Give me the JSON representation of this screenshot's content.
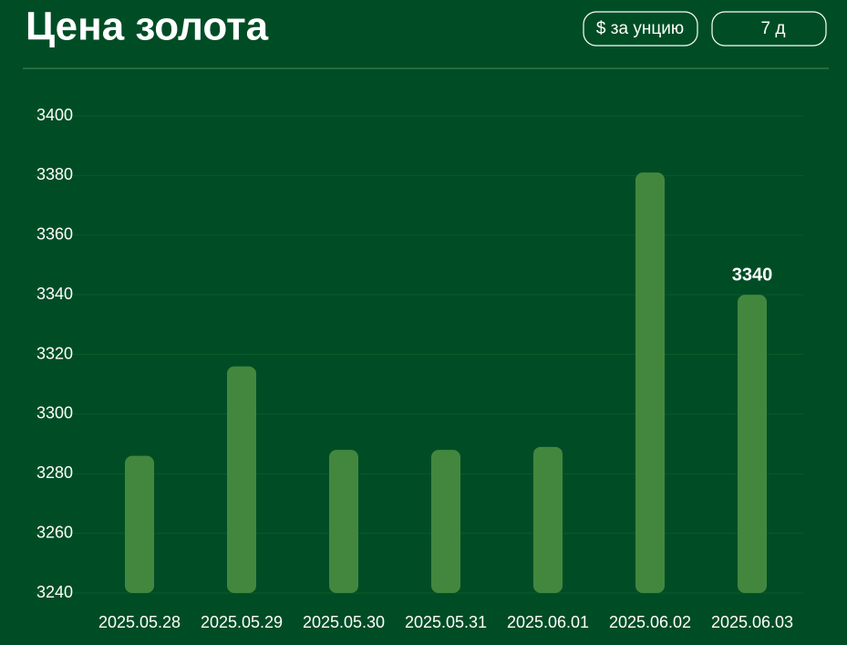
{
  "chart_data": {
    "type": "bar",
    "title": "Цена золота",
    "categories": [
      "2025.05.28",
      "2025.05.29",
      "2025.05.30",
      "2025.05.31",
      "2025.06.01",
      "2025.06.02",
      "2025.06.03"
    ],
    "values": [
      3286,
      3316,
      3288,
      3288,
      3289,
      3381,
      3340
    ],
    "value_labels": [
      null,
      null,
      null,
      null,
      null,
      null,
      "3340"
    ],
    "color": "#43873f",
    "ylim": [
      3240,
      3400
    ],
    "yticks": [
      3240,
      3260,
      3280,
      3300,
      3320,
      3340,
      3360,
      3380,
      3400
    ],
    "grid": true
  },
  "controls": [
    "$ за унцию",
    "7 д"
  ]
}
